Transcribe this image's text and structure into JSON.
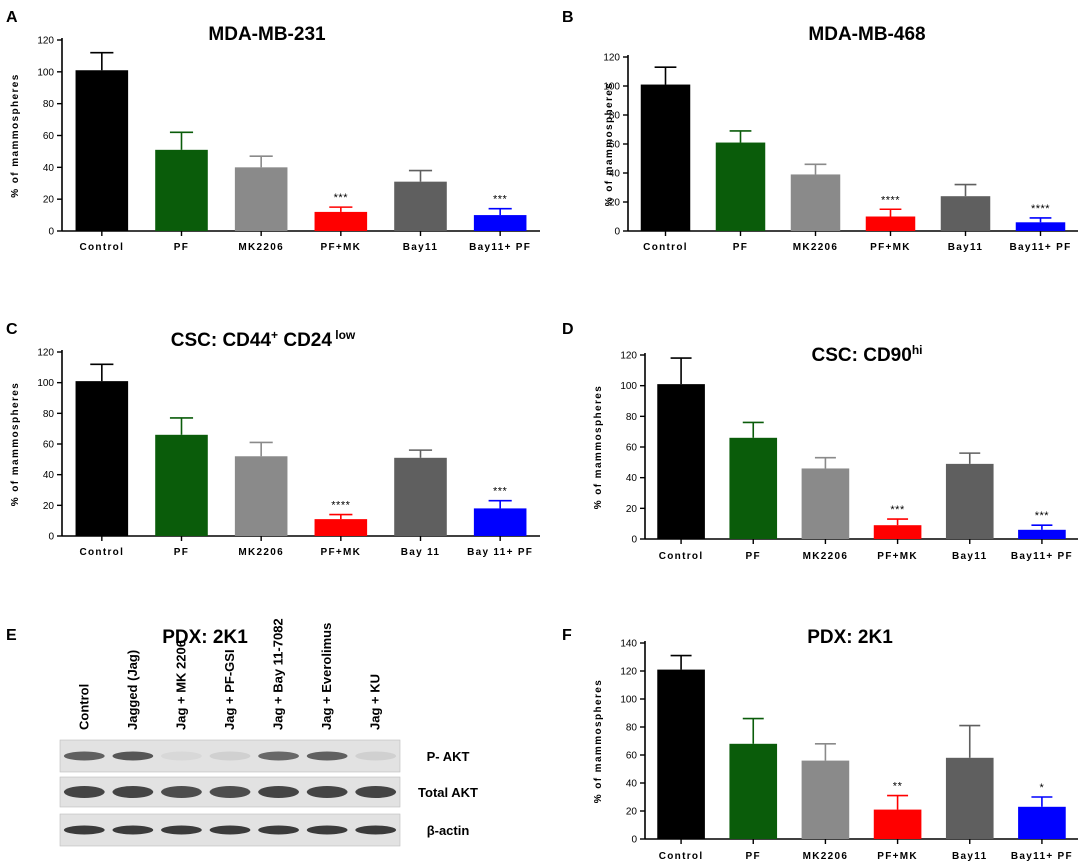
{
  "axis_label": "% of mammospheres",
  "significance_note": "",
  "colors": {
    "Control": "#000000",
    "PF": "#0a5c0a",
    "MK2206": "#8a8a8a",
    "PF+MK": "#ff0000",
    "Bay11": "#5f5f5f",
    "Bay11+ PF": "#0000ff"
  },
  "chart_data": [
    {
      "panel": "A",
      "type": "bar",
      "title": "MDA-MB-231",
      "title_sup": "",
      "title_rest": "",
      "title_sup2": "",
      "ylabel": "% of mammospheres",
      "ylim": [
        0,
        120
      ],
      "yticks": [
        0,
        20,
        40,
        60,
        80,
        100,
        120
      ],
      "categories": [
        "Control",
        "PF",
        "MK2206",
        "PF+MK",
        "Bay11",
        "Bay11+ PF"
      ],
      "values": [
        101,
        51,
        40,
        12,
        31,
        10
      ],
      "errors": [
        11,
        11,
        7,
        3,
        7,
        4
      ],
      "significance": [
        "",
        "",
        "",
        "***",
        "",
        "***"
      ]
    },
    {
      "panel": "B",
      "type": "bar",
      "title": "MDA-MB-468",
      "title_sup": "",
      "title_rest": "",
      "title_sup2": "",
      "ylabel": "% of mammospheres",
      "ylim": [
        0,
        120
      ],
      "yticks": [
        0,
        20,
        40,
        60,
        80,
        100,
        120
      ],
      "categories": [
        "Control",
        "PF",
        "MK2206",
        "PF+MK",
        "Bay11",
        "Bay11+ PF"
      ],
      "values": [
        101,
        61,
        39,
        10,
        24,
        6
      ],
      "errors": [
        12,
        8,
        7,
        5,
        8,
        3
      ],
      "significance": [
        "",
        "",
        "",
        "****",
        "",
        "****"
      ]
    },
    {
      "panel": "C",
      "type": "bar",
      "title": "CSC: CD44",
      "title_sup": "+",
      "title_rest": " CD24",
      "title_sup2": " low",
      "ylabel": "% of mammospheres",
      "ylim": [
        0,
        120
      ],
      "yticks": [
        0,
        20,
        40,
        60,
        80,
        100,
        120
      ],
      "categories": [
        "Control",
        "PF",
        "MK2206",
        "PF+MK",
        "Bay 11",
        "Bay 11+ PF"
      ],
      "values": [
        101,
        66,
        52,
        11,
        51,
        18
      ],
      "errors": [
        11,
        11,
        9,
        3,
        5,
        5
      ],
      "significance": [
        "",
        "",
        "",
        "****",
        "",
        "***"
      ]
    },
    {
      "panel": "D",
      "type": "bar",
      "title": "CSC: CD90",
      "title_sup": "hi",
      "title_rest": "",
      "title_sup2": "",
      "ylabel": "% of mammospheres",
      "ylim": [
        0,
        120
      ],
      "yticks": [
        0,
        20,
        40,
        60,
        80,
        100,
        120
      ],
      "categories": [
        "Control",
        "PF",
        "MK2206",
        "PF+MK",
        "Bay11",
        "Bay11+ PF"
      ],
      "values": [
        101,
        66,
        46,
        9,
        49,
        6
      ],
      "errors": [
        17,
        10,
        7,
        4,
        7,
        3
      ],
      "significance": [
        "",
        "",
        "",
        "***",
        "",
        "***"
      ]
    },
    {
      "panel": "F",
      "type": "bar",
      "title": "PDX: 2K1",
      "title_sup": "",
      "title_rest": "",
      "title_sup2": "",
      "ylabel": "% of mammospheres",
      "ylim": [
        0,
        140
      ],
      "yticks": [
        0,
        20,
        40,
        60,
        80,
        100,
        120,
        140
      ],
      "categories": [
        "Control",
        "PF",
        "MK2206",
        "PF+MK",
        "Bay11",
        "Bay11+ PF"
      ],
      "values": [
        121,
        68,
        56,
        21,
        58,
        23
      ],
      "errors": [
        10,
        18,
        12,
        10,
        23,
        7
      ],
      "significance": [
        "",
        "",
        "",
        "**",
        "",
        "*"
      ]
    }
  ],
  "blot": {
    "panel": "E",
    "title": "PDX: 2K1",
    "lanes": [
      "Control",
      "Jagged (Jag)",
      "Jag + MK 2206",
      "Jag + PF-GSI",
      "Jag + Bay 11-7082",
      "Jag + Everolimus",
      "Jag + KU"
    ],
    "rows": [
      {
        "label": "P- AKT",
        "intensity": [
          0.75,
          0.8,
          0.08,
          0.12,
          0.7,
          0.75,
          0.12
        ]
      },
      {
        "label": "Total AKT",
        "intensity": [
          0.9,
          0.9,
          0.85,
          0.85,
          0.9,
          0.9,
          0.9
        ]
      },
      {
        "label": "β-actin",
        "intensity": [
          0.95,
          0.95,
          0.95,
          0.95,
          0.95,
          0.95,
          0.95
        ]
      }
    ]
  }
}
